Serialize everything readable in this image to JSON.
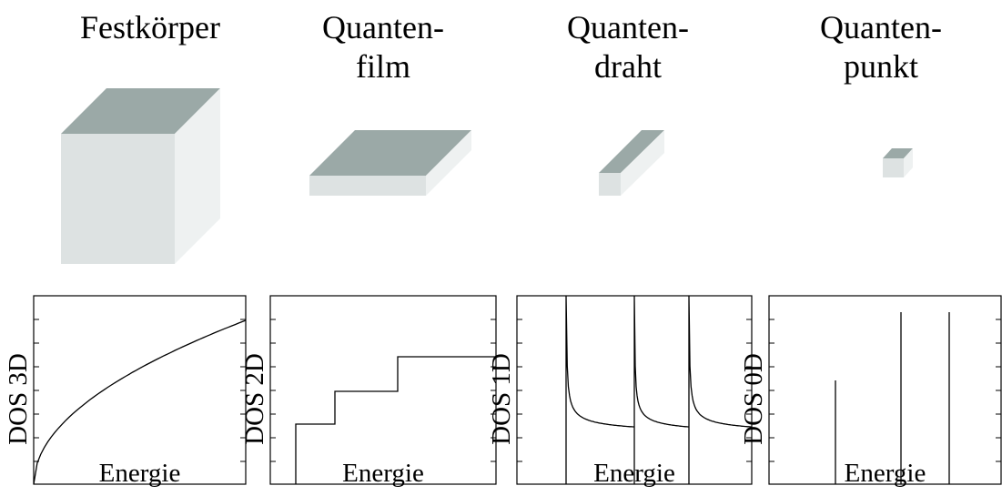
{
  "panels": [
    {
      "title": [
        "Festkörper"
      ],
      "y_label": "DOS  3D",
      "x_label": "Energie"
    },
    {
      "title": [
        "Quanten-",
        "film"
      ],
      "y_label": "DOS  2D",
      "x_label": "Energie"
    },
    {
      "title": [
        "Quanten-",
        "draht"
      ],
      "y_label": "DOS  1D",
      "x_label": "Energie"
    },
    {
      "title": [
        "Quanten-",
        "punkt"
      ],
      "y_label": "DOS  0D",
      "x_label": "Energie"
    }
  ]
}
